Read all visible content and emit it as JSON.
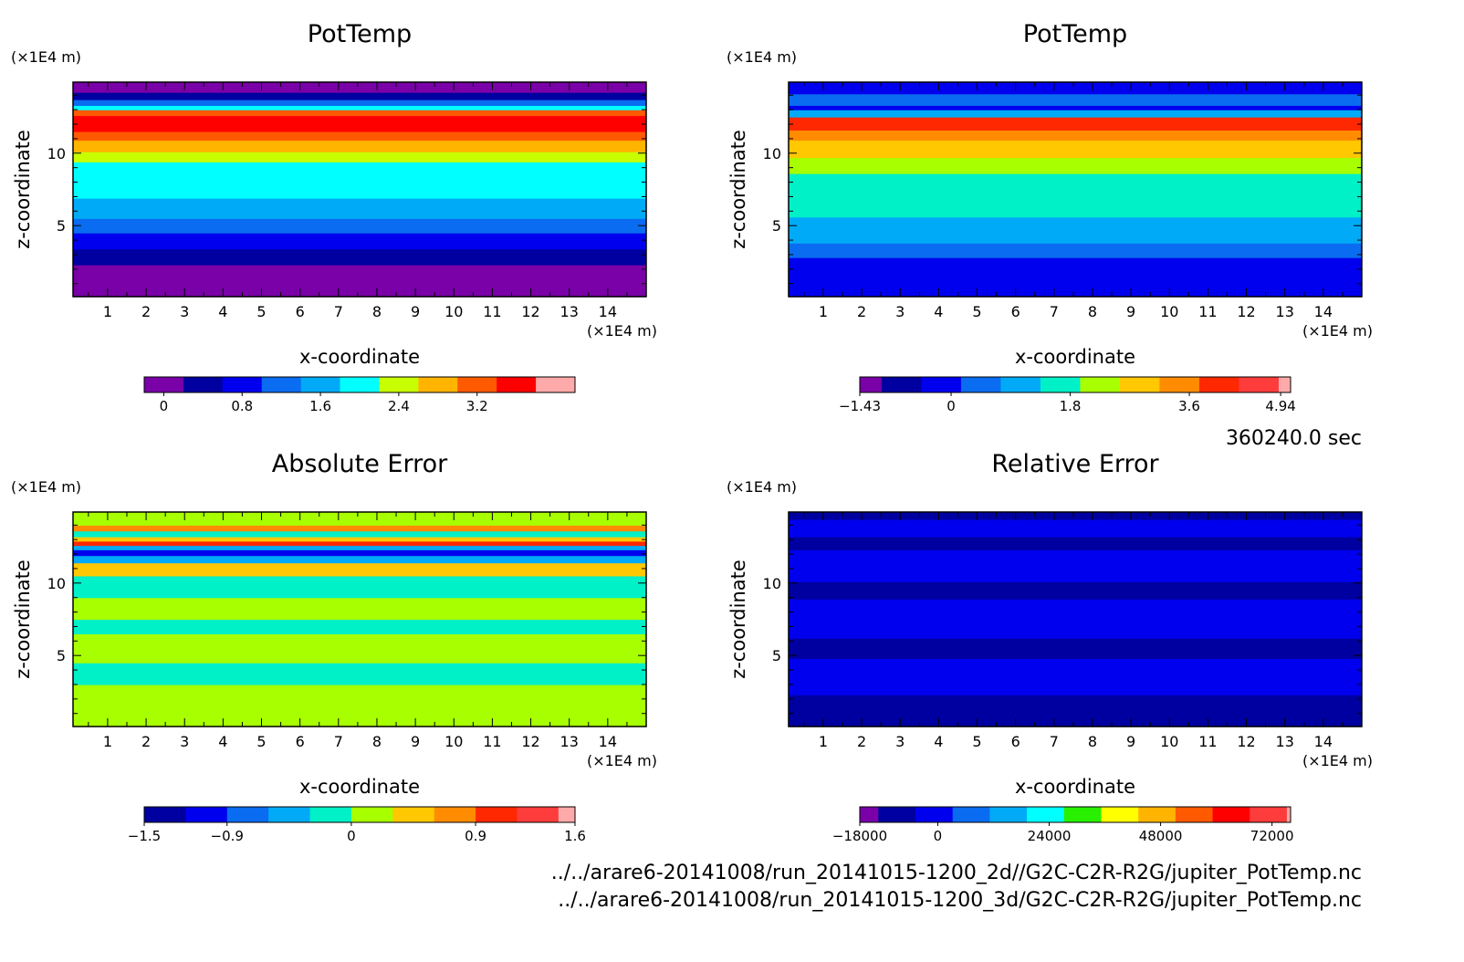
{
  "chart_data": [
    {
      "type": "heatmap",
      "title": "PotTemp",
      "xlabel": "x-coordinate",
      "ylabel": "z-coordinate",
      "x_unit": "(×1E4 m)",
      "y_unit": "(×1E4 m)",
      "xlim": [
        0.1,
        15
      ],
      "ylim": [
        0.1,
        14.9
      ],
      "x_ticks": [
        "1",
        "2",
        "3",
        "4",
        "5",
        "6",
        "7",
        "8",
        "9",
        "10",
        "11",
        "12",
        "13",
        "14"
      ],
      "y_ticks": [
        "5",
        "10"
      ],
      "bands": [
        {
          "z0": 0.1,
          "z1": 2.3,
          "level": 0
        },
        {
          "z0": 2.3,
          "z1": 3.4,
          "level": 1
        },
        {
          "z0": 3.4,
          "z1": 4.5,
          "level": 2
        },
        {
          "z0": 4.5,
          "z1": 5.5,
          "level": 3
        },
        {
          "z0": 5.5,
          "z1": 6.9,
          "level": 4
        },
        {
          "z0": 6.9,
          "z1": 9.4,
          "level": 5
        },
        {
          "z0": 9.4,
          "z1": 10.1,
          "level": 6
        },
        {
          "z0": 10.1,
          "z1": 10.9,
          "level": 7
        },
        {
          "z0": 10.9,
          "z1": 11.5,
          "level": 8
        },
        {
          "z0": 11.5,
          "z1": 12.6,
          "level": 9
        },
        {
          "z0": 12.6,
          "z1": 13.0,
          "level": 8
        },
        {
          "z0": 13.0,
          "z1": 13.3,
          "level": 5
        },
        {
          "z0": 13.3,
          "z1": 13.7,
          "level": 3
        },
        {
          "z0": 13.7,
          "z1": 14.2,
          "level": 1
        },
        {
          "z0": 14.2,
          "z1": 14.9,
          "level": 0
        }
      ],
      "colorbar": {
        "colors": [
          "#7a00a8",
          "#0000a0",
          "#0000ee",
          "#0a6cf0",
          "#00aaf6",
          "#00ffff",
          "#c8ff00",
          "#ffb400",
          "#ff5a00",
          "#ff0000",
          "#ffaaaa"
        ],
        "widths": [
          1,
          1,
          1,
          1,
          1,
          1,
          1,
          1,
          1,
          1,
          1
        ],
        "ticks": [
          {
            "label": "0",
            "pos": 0.5
          },
          {
            "label": "0.8",
            "pos": 2.5
          },
          {
            "label": "1.6",
            "pos": 4.5
          },
          {
            "label": "2.4",
            "pos": 6.5
          },
          {
            "label": "3.2",
            "pos": 8.5
          }
        ]
      }
    },
    {
      "type": "heatmap",
      "title": "PotTemp",
      "xlabel": "x-coordinate",
      "ylabel": "z-coordinate",
      "x_unit": "(×1E4 m)",
      "y_unit": "(×1E4 m)",
      "xlim": [
        0.1,
        15
      ],
      "ylim": [
        0.1,
        14.9
      ],
      "x_ticks": [
        "1",
        "2",
        "3",
        "4",
        "5",
        "6",
        "7",
        "8",
        "9",
        "10",
        "11",
        "12",
        "13",
        "14"
      ],
      "y_ticks": [
        "5",
        "10"
      ],
      "bands": [
        {
          "z0": 0.1,
          "z1": 2.8,
          "level": 2
        },
        {
          "z0": 2.8,
          "z1": 3.8,
          "level": 3
        },
        {
          "z0": 3.8,
          "z1": 5.6,
          "level": 4
        },
        {
          "z0": 5.6,
          "z1": 8.6,
          "level": 5
        },
        {
          "z0": 8.6,
          "z1": 9.7,
          "level": 6
        },
        {
          "z0": 9.7,
          "z1": 10.9,
          "level": 7
        },
        {
          "z0": 10.9,
          "z1": 11.6,
          "level": 8
        },
        {
          "z0": 11.6,
          "z1": 12.5,
          "level": 9
        },
        {
          "z0": 12.5,
          "z1": 13.0,
          "level": 4
        },
        {
          "z0": 13.0,
          "z1": 13.3,
          "level": 2
        },
        {
          "z0": 13.3,
          "z1": 14.1,
          "level": 3
        },
        {
          "z0": 14.1,
          "z1": 14.9,
          "level": 2
        }
      ],
      "colorbar": {
        "colors": [
          "#7a00a8",
          "#0000a0",
          "#0000ee",
          "#0a6cf0",
          "#00aaf6",
          "#00f0c8",
          "#a8ff00",
          "#ffc800",
          "#ff8c00",
          "#ff2800",
          "#ff3c3c",
          "#ffaaaa"
        ],
        "widths": [
          0.55,
          1,
          1,
          1,
          1,
          1,
          1,
          1,
          1,
          1,
          1,
          0.3
        ],
        "ticks": [
          {
            "label": "−1.43",
            "pos": 0
          },
          {
            "label": "0",
            "pos": 2.3
          },
          {
            "label": "1.8",
            "pos": 5.3
          },
          {
            "label": "3.6",
            "pos": 8.3
          },
          {
            "label": "4.94",
            "pos": 10.6
          }
        ]
      }
    },
    {
      "type": "heatmap",
      "title": "Absolute Error",
      "xlabel": "x-coordinate",
      "ylabel": "z-coordinate",
      "x_unit": "(×1E4 m)",
      "y_unit": "(×1E4 m)",
      "xlim": [
        0.1,
        15
      ],
      "ylim": [
        0.1,
        14.9
      ],
      "x_ticks": [
        "1",
        "2",
        "3",
        "4",
        "5",
        "6",
        "7",
        "8",
        "9",
        "10",
        "11",
        "12",
        "13",
        "14"
      ],
      "y_ticks": [
        "5",
        "10"
      ],
      "bands": [
        {
          "z0": 0.1,
          "z1": 3.0,
          "level": 5
        },
        {
          "z0": 3.0,
          "z1": 4.5,
          "level": 4
        },
        {
          "z0": 4.5,
          "z1": 6.5,
          "level": 5
        },
        {
          "z0": 6.5,
          "z1": 7.5,
          "level": 4
        },
        {
          "z0": 7.5,
          "z1": 9.0,
          "level": 5
        },
        {
          "z0": 9.0,
          "z1": 10.5,
          "level": 4
        },
        {
          "z0": 10.5,
          "z1": 11.4,
          "level": 6
        },
        {
          "z0": 11.4,
          "z1": 11.9,
          "level": 3
        },
        {
          "z0": 11.9,
          "z1": 12.3,
          "level": 1
        },
        {
          "z0": 12.3,
          "z1": 12.6,
          "level": 3
        },
        {
          "z0": 12.6,
          "z1": 12.9,
          "level": 8
        },
        {
          "z0": 12.9,
          "z1": 13.2,
          "level": 6
        },
        {
          "z0": 13.2,
          "z1": 13.6,
          "level": 4
        },
        {
          "z0": 13.6,
          "z1": 14.0,
          "level": 7
        },
        {
          "z0": 14.0,
          "z1": 14.9,
          "level": 5
        }
      ],
      "colorbar": {
        "colors": [
          "#0000a0",
          "#0000ee",
          "#0a6cf0",
          "#00aaf6",
          "#00f0c8",
          "#a8ff00",
          "#ffc800",
          "#ff8c00",
          "#ff2800",
          "#ff3c3c",
          "#ffaaaa"
        ],
        "widths": [
          1,
          1,
          1,
          1,
          1,
          1,
          1,
          1,
          1,
          1,
          0.4
        ],
        "ticks": [
          {
            "label": "−1.5",
            "pos": 0
          },
          {
            "label": "−0.9",
            "pos": 2
          },
          {
            "label": "0",
            "pos": 5
          },
          {
            "label": "0.9",
            "pos": 8
          },
          {
            "label": "1.6",
            "pos": 10.4
          }
        ]
      }
    },
    {
      "type": "heatmap",
      "title": "Relative Error",
      "xlabel": "x-coordinate",
      "ylabel": "z-coordinate",
      "x_unit": "(×1E4 m)",
      "y_unit": "(×1E4 m)",
      "xlim": [
        0.1,
        15
      ],
      "ylim": [
        0.1,
        14.9
      ],
      "x_ticks": [
        "1",
        "2",
        "3",
        "4",
        "5",
        "6",
        "7",
        "8",
        "9",
        "10",
        "11",
        "12",
        "13",
        "14"
      ],
      "y_ticks": [
        "5",
        "10"
      ],
      "bands": [
        {
          "z0": 0.1,
          "z1": 2.3,
          "level": 1
        },
        {
          "z0": 2.3,
          "z1": 4.8,
          "level": 2
        },
        {
          "z0": 4.8,
          "z1": 6.2,
          "level": 1
        },
        {
          "z0": 6.2,
          "z1": 8.9,
          "level": 2
        },
        {
          "z0": 8.9,
          "z1": 10.1,
          "level": 1
        },
        {
          "z0": 10.1,
          "z1": 12.3,
          "level": 2
        },
        {
          "z0": 12.3,
          "z1": 13.2,
          "level": 1
        },
        {
          "z0": 13.2,
          "z1": 14.4,
          "level": 2
        },
        {
          "z0": 14.4,
          "z1": 14.9,
          "level": 1
        }
      ],
      "colorbar": {
        "colors": [
          "#7a00a8",
          "#0000a0",
          "#0000ee",
          "#0a6cf0",
          "#00aaf6",
          "#00ffff",
          "#28f000",
          "#ffff00",
          "#ffb400",
          "#ff5a00",
          "#ff0000",
          "#ff3c3c",
          "#ffaaaa"
        ],
        "widths": [
          0.5,
          1,
          1,
          1,
          1,
          1,
          1,
          1,
          1,
          1,
          1,
          1,
          0.1
        ],
        "ticks": [
          {
            "label": "−18000",
            "pos": 0
          },
          {
            "label": "0",
            "pos": 2.1
          },
          {
            "label": "24000",
            "pos": 5.1
          },
          {
            "label": "48000",
            "pos": 8.1
          },
          {
            "label": "72000",
            "pos": 11.1
          }
        ]
      }
    }
  ],
  "time_label": "360240.0 sec",
  "footer": [
    "../../arare6-20141008/run_20141015-1200_2d//G2C-C2R-R2G/jupiter_PotTemp.nc",
    "../../arare6-20141008/run_20141015-1200_3d/G2C-C2R-R2G/jupiter_PotTemp.nc"
  ]
}
